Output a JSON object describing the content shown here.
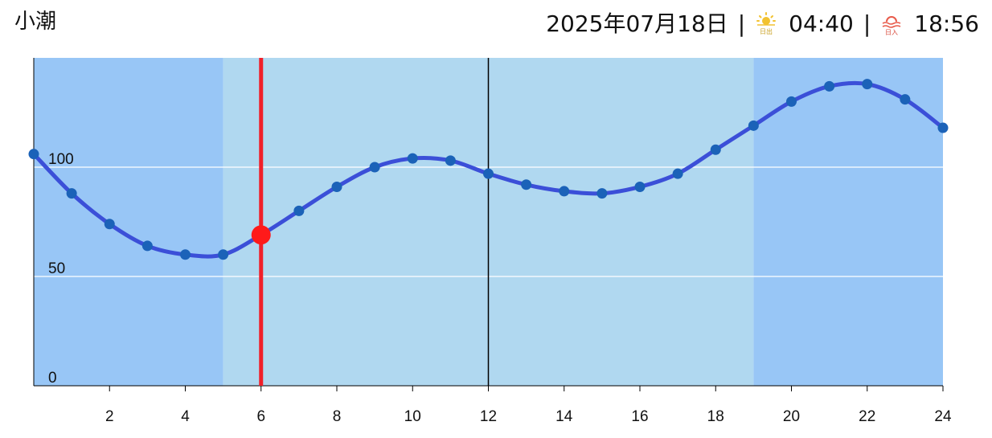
{
  "header": {
    "tide_type": "小潮",
    "date": "2025年07月18日",
    "separator": "|",
    "sunrise_icon": "sunrise-icon",
    "sunrise_icon_label": "日出",
    "sunrise_time": "04:40",
    "sunset_icon": "sunset-icon",
    "sunset_icon_label": "日入",
    "sunset_time": "18:56"
  },
  "colors": {
    "night_band": "#98c6f6",
    "day_band": "#b0d8f0",
    "tide_line": "#3b4fd8",
    "tide_points": "#1b62b8",
    "current_marker": "#ff1a1a",
    "now_line": "#f0202a",
    "grid": "#ffffff",
    "noon_line": "#000000"
  },
  "chart_data": {
    "type": "line",
    "title": "",
    "xlabel": "",
    "ylabel": "",
    "xlim": [
      0,
      24
    ],
    "ylim": [
      0,
      150
    ],
    "x_ticks": [
      "2",
      "4",
      "6",
      "8",
      "10",
      "12",
      "14",
      "16",
      "18",
      "20",
      "22",
      "24"
    ],
    "y_ticks": [
      "0",
      "50",
      "100"
    ],
    "grid": true,
    "series": [
      {
        "x": [
          0,
          1,
          2,
          3,
          4,
          5,
          6,
          7,
          8,
          9,
          10,
          11,
          12,
          13,
          14,
          15,
          16,
          17,
          18,
          19,
          20,
          21,
          22,
          23,
          24
        ],
        "values": [
          106,
          88,
          74,
          64,
          60,
          60,
          69,
          80,
          91,
          100,
          104,
          103,
          97,
          92,
          89,
          88,
          91,
          97,
          108,
          119,
          130,
          137,
          138,
          131,
          118
        ]
      }
    ],
    "current": {
      "x": 6,
      "y": 69
    },
    "sunrise_hour": 5,
    "sunset_hour": 19,
    "noon_line_hour": 12
  }
}
